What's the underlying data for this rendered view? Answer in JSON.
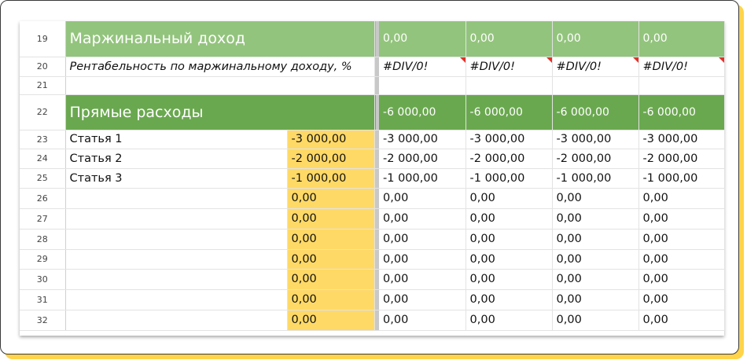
{
  "rows": [
    {
      "num": "19",
      "label": "Маржинальный доход",
      "base": "",
      "values": [
        "0,00",
        "0,00",
        "0,00",
        "0,00"
      ]
    },
    {
      "num": "20",
      "label": "Рентабельность по маржинальному доходу, %",
      "values": [
        "#DIV/0!",
        "#DIV/0!",
        "#DIV/0!",
        "#DIV/0!"
      ]
    },
    {
      "num": "21"
    },
    {
      "num": "22",
      "label": "Прямые расходы",
      "base": "",
      "values": [
        "-6 000,00",
        "-6 000,00",
        "-6 000,00",
        "-6 000,00"
      ]
    },
    {
      "num": "23",
      "label": "Статья 1",
      "base": "-3 000,00",
      "values": [
        "-3 000,00",
        "-3 000,00",
        "-3 000,00",
        "-3 000,00"
      ]
    },
    {
      "num": "24",
      "label": "Статья 2",
      "base": "-2 000,00",
      "values": [
        "-2 000,00",
        "-2 000,00",
        "-2 000,00",
        "-2 000,00"
      ]
    },
    {
      "num": "25",
      "label": "Статья 3",
      "base": "-1 000,00",
      "values": [
        "-1 000,00",
        "-1 000,00",
        "-1 000,00",
        "-1 000,00"
      ]
    },
    {
      "num": "26",
      "label": "",
      "base": "0,00",
      "values": [
        "0,00",
        "0,00",
        "0,00",
        "0,00"
      ]
    },
    {
      "num": "27",
      "label": "",
      "base": "0,00",
      "values": [
        "0,00",
        "0,00",
        "0,00",
        "0,00"
      ]
    },
    {
      "num": "28",
      "label": "",
      "base": "0,00",
      "values": [
        "0,00",
        "0,00",
        "0,00",
        "0,00"
      ]
    },
    {
      "num": "29",
      "label": "",
      "base": "0,00",
      "values": [
        "0,00",
        "0,00",
        "0,00",
        "0,00"
      ]
    },
    {
      "num": "30",
      "label": "",
      "base": "0,00",
      "values": [
        "0,00",
        "0,00",
        "0,00",
        "0,00"
      ]
    },
    {
      "num": "31",
      "label": "",
      "base": "0,00",
      "values": [
        "0,00",
        "0,00",
        "0,00",
        "0,00"
      ]
    },
    {
      "num": "32",
      "label": "",
      "base": "0,00",
      "values": [
        "0,00",
        "0,00",
        "0,00",
        "0,00"
      ]
    }
  ],
  "colors": {
    "header_light_green": "#93c47d",
    "header_dark_green": "#6aa84f",
    "input_yellow": "#ffd966",
    "frame_accent": "#ffd448",
    "error_comment_marker": "#e0312a"
  }
}
